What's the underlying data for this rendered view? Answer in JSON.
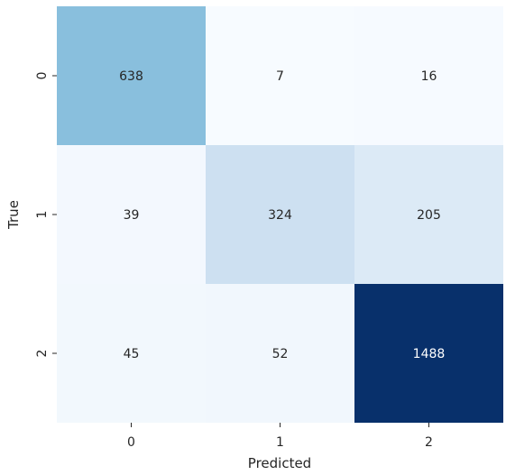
{
  "chart_data": {
    "type": "heatmap",
    "title": "",
    "xlabel": "Predicted",
    "ylabel": "True",
    "x_categories": [
      "0",
      "1",
      "2"
    ],
    "y_categories": [
      "0",
      "1",
      "2"
    ],
    "values": [
      [
        638,
        7,
        16
      ],
      [
        39,
        324,
        205
      ],
      [
        45,
        52,
        1488
      ]
    ],
    "colormap": "Blues",
    "colorbar": false,
    "grid": false
  }
}
